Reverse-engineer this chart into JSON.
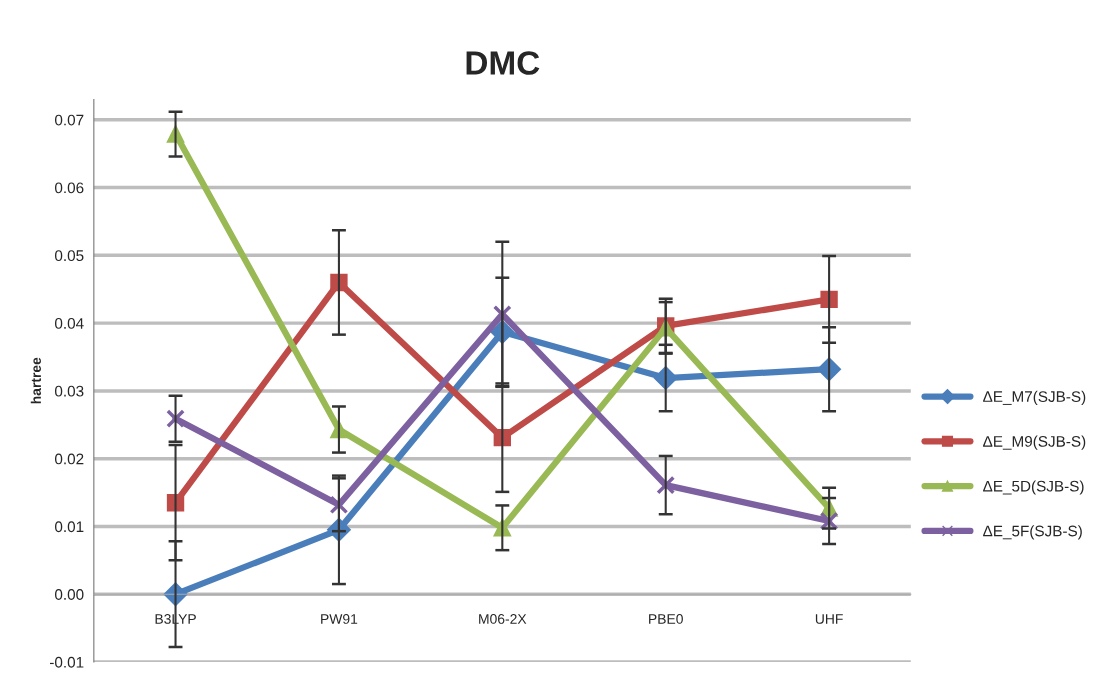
{
  "chart_data": {
    "type": "line",
    "title": "DMC",
    "ylabel": "hartree",
    "categories": [
      "B3LYP",
      "PW91",
      "M06-2X",
      "PBE0",
      "UHF"
    ],
    "series": [
      {
        "name": "ΔE_M7(SJB-S)",
        "color": "#4a7ebb",
        "marker": "diamond",
        "values": [
          0.0,
          0.0095,
          0.0387,
          0.0319,
          0.0332
        ],
        "errors": [
          0.0078,
          0.008,
          0.008,
          0.0049,
          0.0062
        ]
      },
      {
        "name": "ΔE_M9(SJB-S)",
        "color": "#be4b48",
        "marker": "square",
        "values": [
          0.0135,
          0.046,
          0.0231,
          0.0396,
          0.0435
        ],
        "errors": [
          0.0085,
          0.0077,
          0.008,
          0.004,
          0.0064
        ]
      },
      {
        "name": "ΔE_5D(SJB-S)",
        "color": "#98b954",
        "marker": "triangle",
        "values": [
          0.0679,
          0.0243,
          0.0098,
          0.0393,
          0.0127
        ],
        "errors": [
          0.0033,
          0.0034,
          0.0033,
          0.0038,
          0.003
        ]
      },
      {
        "name": "ΔE_5F(SJB-S)",
        "color": "#7d60a0",
        "marker": "cross",
        "values": [
          0.0259,
          0.0132,
          0.0413,
          0.0161,
          0.0108
        ],
        "errors": [
          0.0034,
          0.0039,
          0.0107,
          0.0043,
          0.0034
        ]
      }
    ],
    "ylim": [
      -0.01,
      0.073
    ],
    "yticks": [
      {
        "value": -0.01,
        "label": "-0.01"
      },
      {
        "value": 0,
        "label": "0.00"
      },
      {
        "value": 0.01,
        "label": "0.01"
      },
      {
        "value": 0.02,
        "label": "0.02"
      },
      {
        "value": 0.03,
        "label": "0.03"
      },
      {
        "value": 0.04,
        "label": "0.04"
      },
      {
        "value": 0.05,
        "label": "0.05"
      },
      {
        "value": 0.06,
        "label": "0.06"
      },
      {
        "value": 0.07,
        "label": "0.07"
      }
    ],
    "grid": "y",
    "legend": "right",
    "line_style": "solid"
  }
}
